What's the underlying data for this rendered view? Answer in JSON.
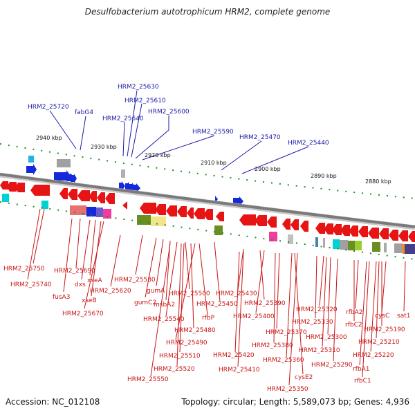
{
  "header": {
    "title": "Desulfobacterium autotrophicum HRM2, complete genome"
  },
  "footer": {
    "accession": "Accession: NC_012108",
    "topology": "Topology: circular; Length: 5,589,073 bp; Genes: 4,936"
  },
  "scale_labels": [
    "2940 kbp",
    "2930 kbp",
    "2920 kbp",
    "2910 kbp",
    "2900 kbp",
    "2890 kbp",
    "2880 kbp"
  ],
  "top_labels": [
    "HRM2_25720",
    "fabG4",
    "HRM2_25630",
    "HRM2_25610",
    "HRM2_25640",
    "HRM2_25600",
    "HRM2_25590",
    "HRM2_25470",
    "HRM2_25440"
  ],
  "bottom_labels": [
    "HRM2_25750",
    "HRM2_25740",
    "fusA3",
    "HRM2_25690",
    "dxs",
    "xseA",
    "xseB",
    "HRM2_25670",
    "HRM2_25620",
    "HRM2_25580",
    "gumC2",
    "gumA",
    "msbA2",
    "HRM2_25540",
    "HRM2_25500",
    "HRM2_25450",
    "rfbP",
    "HRM2_25480",
    "HRM2_25490",
    "HRM2_25510",
    "HRM2_25520",
    "HRM2_25550",
    "HRM2_25430",
    "HRM2_25390",
    "HRM2_25400",
    "HRM2_25420",
    "HRM2_25410",
    "HRM2_25370",
    "HRM2_25380",
    "HRM2_25360",
    "HRM2_25320",
    "HRM2_25330",
    "cysE2",
    "HRM2_25350",
    "HRM2_25300",
    "HRM2_25310",
    "HRM2_25290",
    "rfbA2",
    "rfbC2",
    "cysC",
    "sat1",
    "HRM2_25190",
    "HRM2_25210",
    "HRM2_25220",
    "rfbA1",
    "rfbC1"
  ],
  "colors": {
    "backbone": "#8a8a8a",
    "forward_gene": "#1428dc",
    "reverse_gene": "#e61414",
    "tick": "#1e8c1e",
    "label_top": "#1a1aa8",
    "label_bottom": "#c81414"
  }
}
